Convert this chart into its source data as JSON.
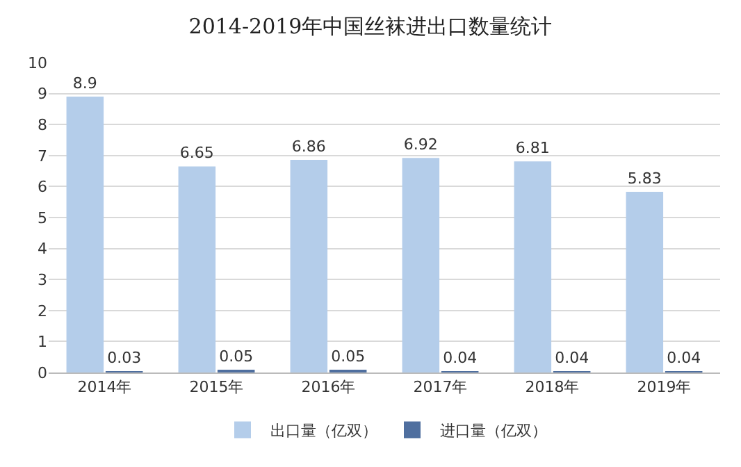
{
  "chart_data": {
    "type": "bar",
    "title": "2014-2019年中国丝袜进出口数量统计",
    "categories": [
      "2014年",
      "2015年",
      "2016年",
      "2017年",
      "2018年",
      "2019年"
    ],
    "series": [
      {
        "name": "出口量（亿双）",
        "color": "#b4cdea",
        "values": [
          8.9,
          6.65,
          6.86,
          6.92,
          6.81,
          5.83
        ]
      },
      {
        "name": "进口量（亿双）",
        "color": "#4f6f9f",
        "values": [
          0.03,
          0.05,
          0.05,
          0.04,
          0.04,
          0.04
        ]
      }
    ],
    "ylim": [
      0,
      10
    ],
    "yticks": [
      0,
      1,
      2,
      3,
      4,
      5,
      6,
      7,
      8,
      9,
      10
    ],
    "grid": "y",
    "legend": "bottom",
    "data_labels": true
  }
}
